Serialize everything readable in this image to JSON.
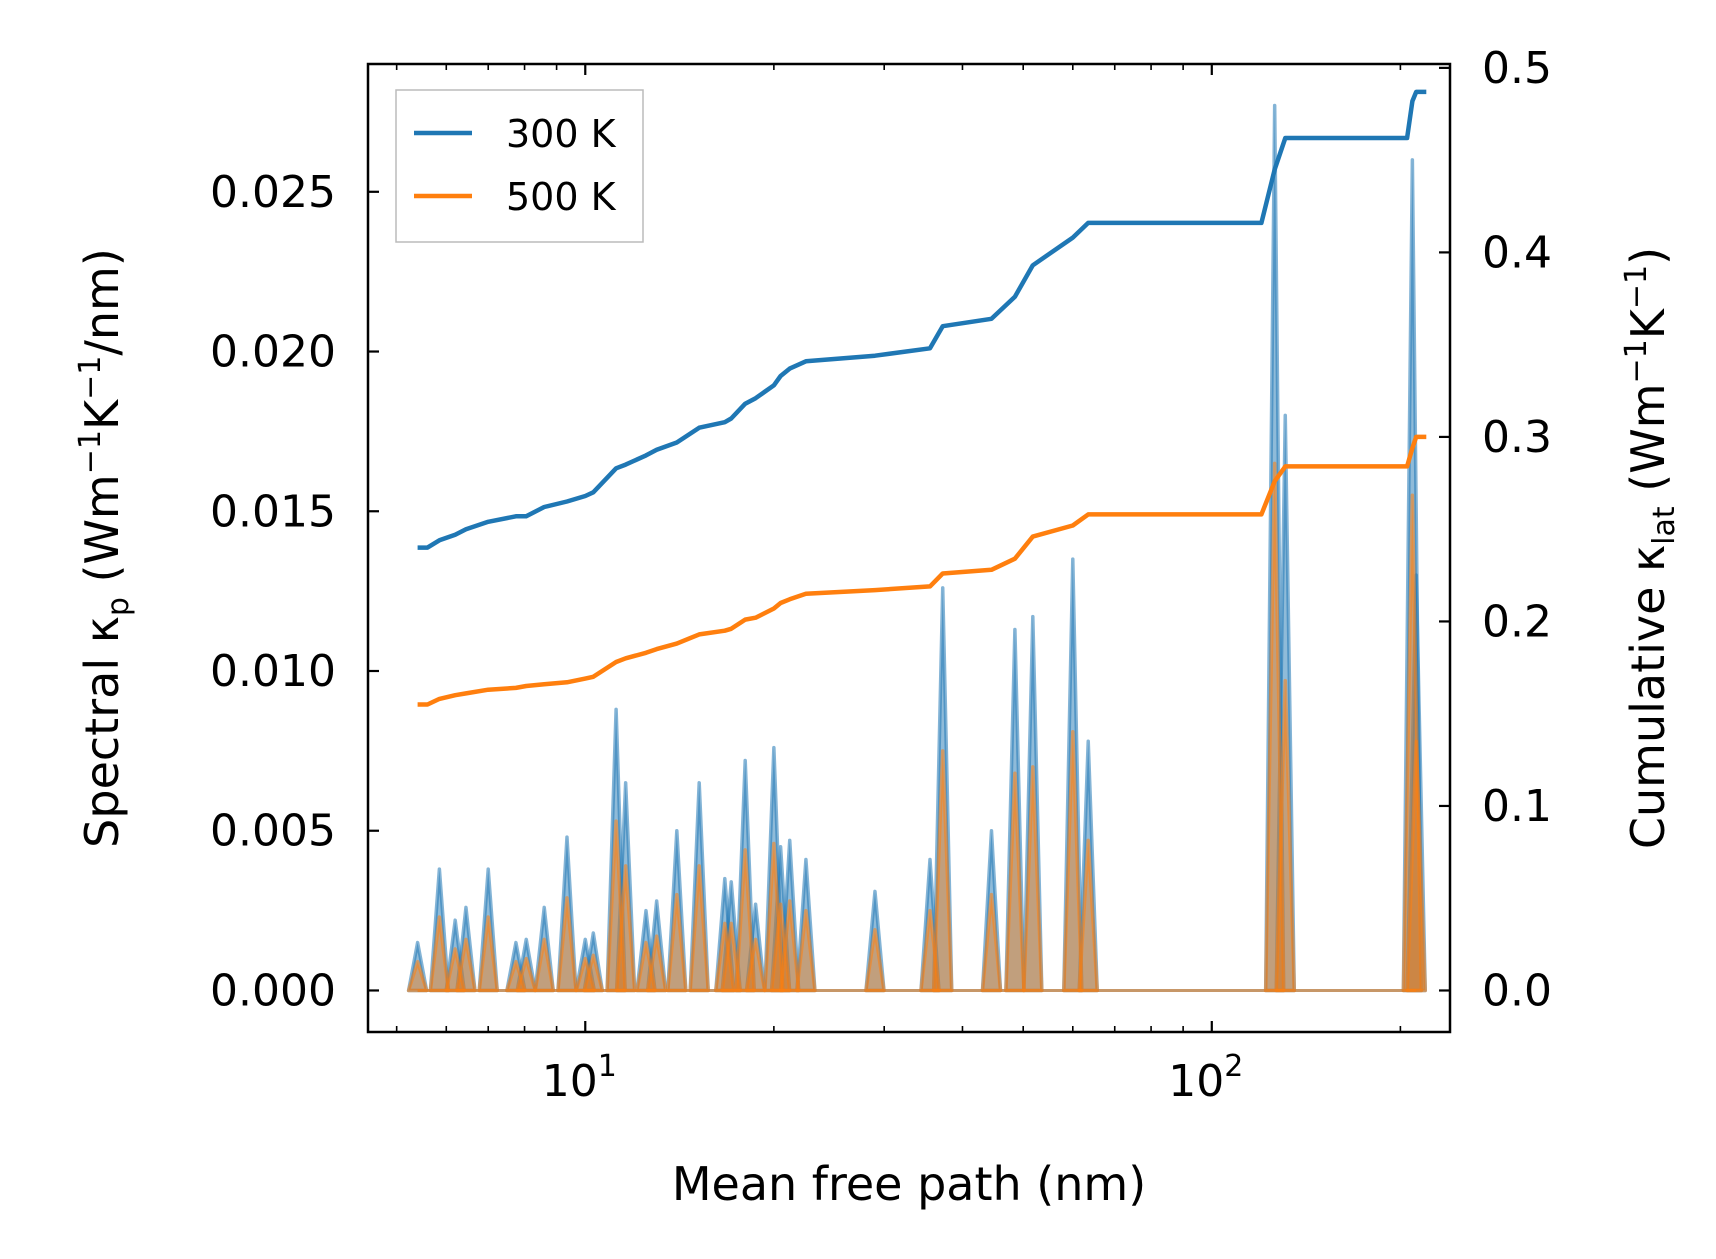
{
  "chart_data": {
    "type": "line",
    "title": "",
    "xlabel": "Mean free path (nm)",
    "ylabel_left": "Spectral κ_p (Wm⁻¹K⁻¹/nm)",
    "ylabel_right": "Cumulative κ_lat (Wm⁻¹K⁻¹)",
    "xscale": "log",
    "xlim": [
      4.5,
      240
    ],
    "ylim_left": [
      -0.0013,
      0.029
    ],
    "ylim_right": [
      -0.0225,
      0.5021
    ],
    "x_ticks": [
      {
        "value": 10,
        "base": "10",
        "exp": "1"
      },
      {
        "value": 100,
        "base": "10",
        "exp": "2"
      }
    ],
    "y_ticks_left": [
      "0.000",
      "0.005",
      "0.010",
      "0.015",
      "0.020",
      "0.025"
    ],
    "y_ticks_left_values": [
      0,
      0.005,
      0.01,
      0.015,
      0.02,
      0.025
    ],
    "y_ticks_right": [
      "0.0",
      "0.1",
      "0.2",
      "0.3",
      "0.4",
      "0.5"
    ],
    "y_ticks_right_values": [
      0,
      0.1,
      0.2,
      0.3,
      0.4,
      0.5
    ],
    "legend": {
      "position": "upper-left",
      "entries": [
        {
          "label": "300 K",
          "color": "#1f77b4"
        },
        {
          "label": "500 K",
          "color": "#ff7f0e"
        }
      ]
    },
    "spectral_series": [
      {
        "name": "300 K",
        "color": "#1f77b4",
        "peaks": [
          {
            "x": 5.4,
            "y": 0.0015
          },
          {
            "x": 5.85,
            "y": 0.0038
          },
          {
            "x": 6.2,
            "y": 0.0022
          },
          {
            "x": 6.45,
            "y": 0.0026
          },
          {
            "x": 7.0,
            "y": 0.0038
          },
          {
            "x": 7.75,
            "y": 0.0015
          },
          {
            "x": 8.05,
            "y": 0.0016
          },
          {
            "x": 8.6,
            "y": 0.0026
          },
          {
            "x": 9.35,
            "y": 0.0048
          },
          {
            "x": 10.0,
            "y": 0.0016
          },
          {
            "x": 10.3,
            "y": 0.0018
          },
          {
            "x": 11.2,
            "y": 0.0088
          },
          {
            "x": 11.6,
            "y": 0.0065
          },
          {
            "x": 12.5,
            "y": 0.0025
          },
          {
            "x": 13.0,
            "y": 0.0028
          },
          {
            "x": 14.0,
            "y": 0.005
          },
          {
            "x": 15.2,
            "y": 0.0065
          },
          {
            "x": 16.7,
            "y": 0.0035
          },
          {
            "x": 17.1,
            "y": 0.0034
          },
          {
            "x": 18.0,
            "y": 0.0072
          },
          {
            "x": 18.7,
            "y": 0.0027
          },
          {
            "x": 20.0,
            "y": 0.0076
          },
          {
            "x": 20.5,
            "y": 0.0045
          },
          {
            "x": 21.2,
            "y": 0.0047
          },
          {
            "x": 22.5,
            "y": 0.0041
          },
          {
            "x": 29.0,
            "y": 0.0031
          },
          {
            "x": 35.5,
            "y": 0.0041
          },
          {
            "x": 37.2,
            "y": 0.0126
          },
          {
            "x": 44.5,
            "y": 0.005
          },
          {
            "x": 48.5,
            "y": 0.0113
          },
          {
            "x": 51.8,
            "y": 0.0117
          },
          {
            "x": 60.0,
            "y": 0.0135
          },
          {
            "x": 63.5,
            "y": 0.0078
          },
          {
            "x": 126.0,
            "y": 0.0277
          },
          {
            "x": 131.0,
            "y": 0.018
          },
          {
            "x": 209.0,
            "y": 0.026
          },
          {
            "x": 212.0,
            "y": 0.013
          }
        ]
      },
      {
        "name": "500 K",
        "color": "#ff7f0e",
        "peaks": [
          {
            "x": 5.4,
            "y": 0.0009
          },
          {
            "x": 5.85,
            "y": 0.0023
          },
          {
            "x": 6.2,
            "y": 0.0013
          },
          {
            "x": 6.45,
            "y": 0.0016
          },
          {
            "x": 7.0,
            "y": 0.0023
          },
          {
            "x": 7.75,
            "y": 0.0009
          },
          {
            "x": 8.05,
            "y": 0.001
          },
          {
            "x": 8.6,
            "y": 0.0016
          },
          {
            "x": 9.35,
            "y": 0.0029
          },
          {
            "x": 10.0,
            "y": 0.001
          },
          {
            "x": 10.3,
            "y": 0.0011
          },
          {
            "x": 11.2,
            "y": 0.0053
          },
          {
            "x": 11.6,
            "y": 0.0039
          },
          {
            "x": 12.5,
            "y": 0.0015
          },
          {
            "x": 13.0,
            "y": 0.0017
          },
          {
            "x": 14.0,
            "y": 0.003
          },
          {
            "x": 15.2,
            "y": 0.0039
          },
          {
            "x": 16.7,
            "y": 0.0021
          },
          {
            "x": 17.1,
            "y": 0.0021
          },
          {
            "x": 18.0,
            "y": 0.0044
          },
          {
            "x": 18.7,
            "y": 0.0016
          },
          {
            "x": 20.0,
            "y": 0.0046
          },
          {
            "x": 20.5,
            "y": 0.0027
          },
          {
            "x": 21.2,
            "y": 0.0028
          },
          {
            "x": 22.5,
            "y": 0.0025
          },
          {
            "x": 29.0,
            "y": 0.0019
          },
          {
            "x": 35.5,
            "y": 0.0025
          },
          {
            "x": 37.2,
            "y": 0.0075
          },
          {
            "x": 44.5,
            "y": 0.003
          },
          {
            "x": 48.5,
            "y": 0.0068
          },
          {
            "x": 51.8,
            "y": 0.007
          },
          {
            "x": 60.0,
            "y": 0.0081
          },
          {
            "x": 63.5,
            "y": 0.0047
          },
          {
            "x": 126.0,
            "y": 0.0165
          },
          {
            "x": 131.0,
            "y": 0.0097
          },
          {
            "x": 209.0,
            "y": 0.0155
          },
          {
            "x": 212.0,
            "y": 0.0078
          }
        ]
      }
    ],
    "cumulative_series": [
      {
        "name": "300 K",
        "color": "#1f77b4",
        "points": [
          [
            5.4,
            0.24
          ],
          [
            5.6,
            0.24
          ],
          [
            5.85,
            0.244
          ],
          [
            6.2,
            0.247
          ],
          [
            6.45,
            0.25
          ],
          [
            7.0,
            0.254
          ],
          [
            7.75,
            0.257
          ],
          [
            8.05,
            0.257
          ],
          [
            8.6,
            0.262
          ],
          [
            9.35,
            0.265
          ],
          [
            10.0,
            0.268
          ],
          [
            10.3,
            0.27
          ],
          [
            11.2,
            0.283
          ],
          [
            11.6,
            0.285
          ],
          [
            12.5,
            0.29
          ],
          [
            13.0,
            0.293
          ],
          [
            14.0,
            0.297
          ],
          [
            15.2,
            0.305
          ],
          [
            16.7,
            0.308
          ],
          [
            17.1,
            0.31
          ],
          [
            18.0,
            0.318
          ],
          [
            18.7,
            0.321
          ],
          [
            20.0,
            0.328
          ],
          [
            20.5,
            0.333
          ],
          [
            21.2,
            0.337
          ],
          [
            22.5,
            0.341
          ],
          [
            29.0,
            0.344
          ],
          [
            35.5,
            0.348
          ],
          [
            37.2,
            0.36
          ],
          [
            44.5,
            0.364
          ],
          [
            48.5,
            0.376
          ],
          [
            51.8,
            0.393
          ],
          [
            60.0,
            0.408
          ],
          [
            63.5,
            0.416
          ],
          [
            120.0,
            0.416
          ],
          [
            126.0,
            0.445
          ],
          [
            131.0,
            0.462
          ],
          [
            205.0,
            0.462
          ],
          [
            209.0,
            0.482
          ],
          [
            212.0,
            0.487
          ],
          [
            220.0,
            0.487
          ]
        ]
      },
      {
        "name": "500 K",
        "color": "#ff7f0e",
        "points": [
          [
            5.4,
            0.155
          ],
          [
            5.6,
            0.155
          ],
          [
            5.85,
            0.158
          ],
          [
            6.2,
            0.16
          ],
          [
            6.45,
            0.161
          ],
          [
            7.0,
            0.163
          ],
          [
            7.75,
            0.164
          ],
          [
            8.05,
            0.165
          ],
          [
            8.6,
            0.166
          ],
          [
            9.35,
            0.167
          ],
          [
            10.0,
            0.169
          ],
          [
            10.3,
            0.17
          ],
          [
            11.2,
            0.178
          ],
          [
            11.6,
            0.18
          ],
          [
            12.5,
            0.183
          ],
          [
            13.0,
            0.185
          ],
          [
            14.0,
            0.188
          ],
          [
            15.2,
            0.193
          ],
          [
            16.7,
            0.195
          ],
          [
            17.1,
            0.196
          ],
          [
            18.0,
            0.201
          ],
          [
            18.7,
            0.202
          ],
          [
            20.0,
            0.207
          ],
          [
            20.5,
            0.21
          ],
          [
            21.2,
            0.212
          ],
          [
            22.5,
            0.215
          ],
          [
            29.0,
            0.217
          ],
          [
            35.5,
            0.219
          ],
          [
            37.2,
            0.226
          ],
          [
            44.5,
            0.228
          ],
          [
            48.5,
            0.234
          ],
          [
            51.8,
            0.246
          ],
          [
            60.0,
            0.252
          ],
          [
            63.5,
            0.258
          ],
          [
            120.0,
            0.258
          ],
          [
            126.0,
            0.276
          ],
          [
            131.0,
            0.284
          ],
          [
            205.0,
            0.284
          ],
          [
            209.0,
            0.294
          ],
          [
            212.0,
            0.3
          ],
          [
            220.0,
            0.3
          ]
        ]
      }
    ]
  }
}
